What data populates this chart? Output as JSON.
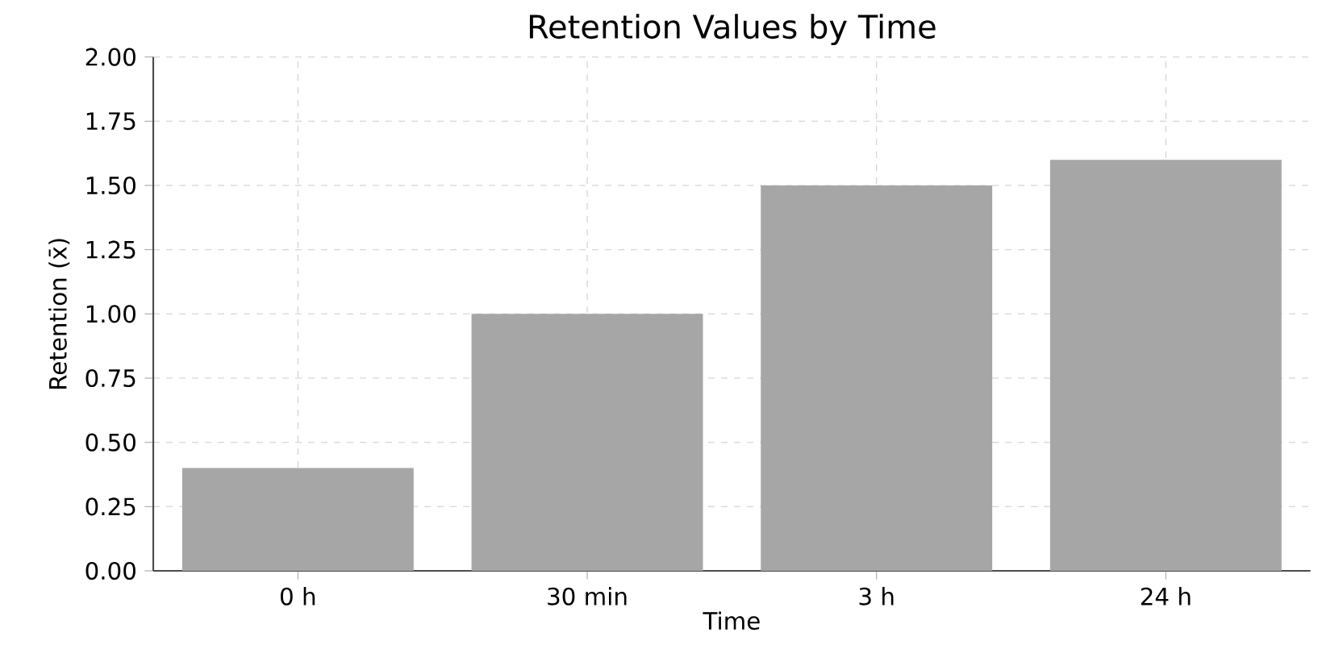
{
  "chart_data": {
    "type": "bar",
    "title": "Retention Values by Time",
    "xlabel": "Time",
    "ylabel": "Retention (x̄)",
    "categories": [
      "0 h",
      "30 min",
      "3 h",
      "24 h"
    ],
    "values": [
      0.4,
      1.0,
      1.5,
      1.6
    ],
    "color": "#a6a6a6",
    "ylim": [
      0,
      2
    ],
    "yticks": [
      {
        "value": 0,
        "label": "0.00"
      },
      {
        "value": 0.25,
        "label": "0.25"
      },
      {
        "value": 0.5,
        "label": "0.50"
      },
      {
        "value": 0.75,
        "label": "0.75"
      },
      {
        "value": 1,
        "label": "1.00"
      },
      {
        "value": 1.25,
        "label": "1.25"
      },
      {
        "value": 1.5,
        "label": "1.50"
      },
      {
        "value": 1.75,
        "label": "1.75"
      },
      {
        "value": 2,
        "label": "2.00"
      }
    ],
    "grid": true
  }
}
